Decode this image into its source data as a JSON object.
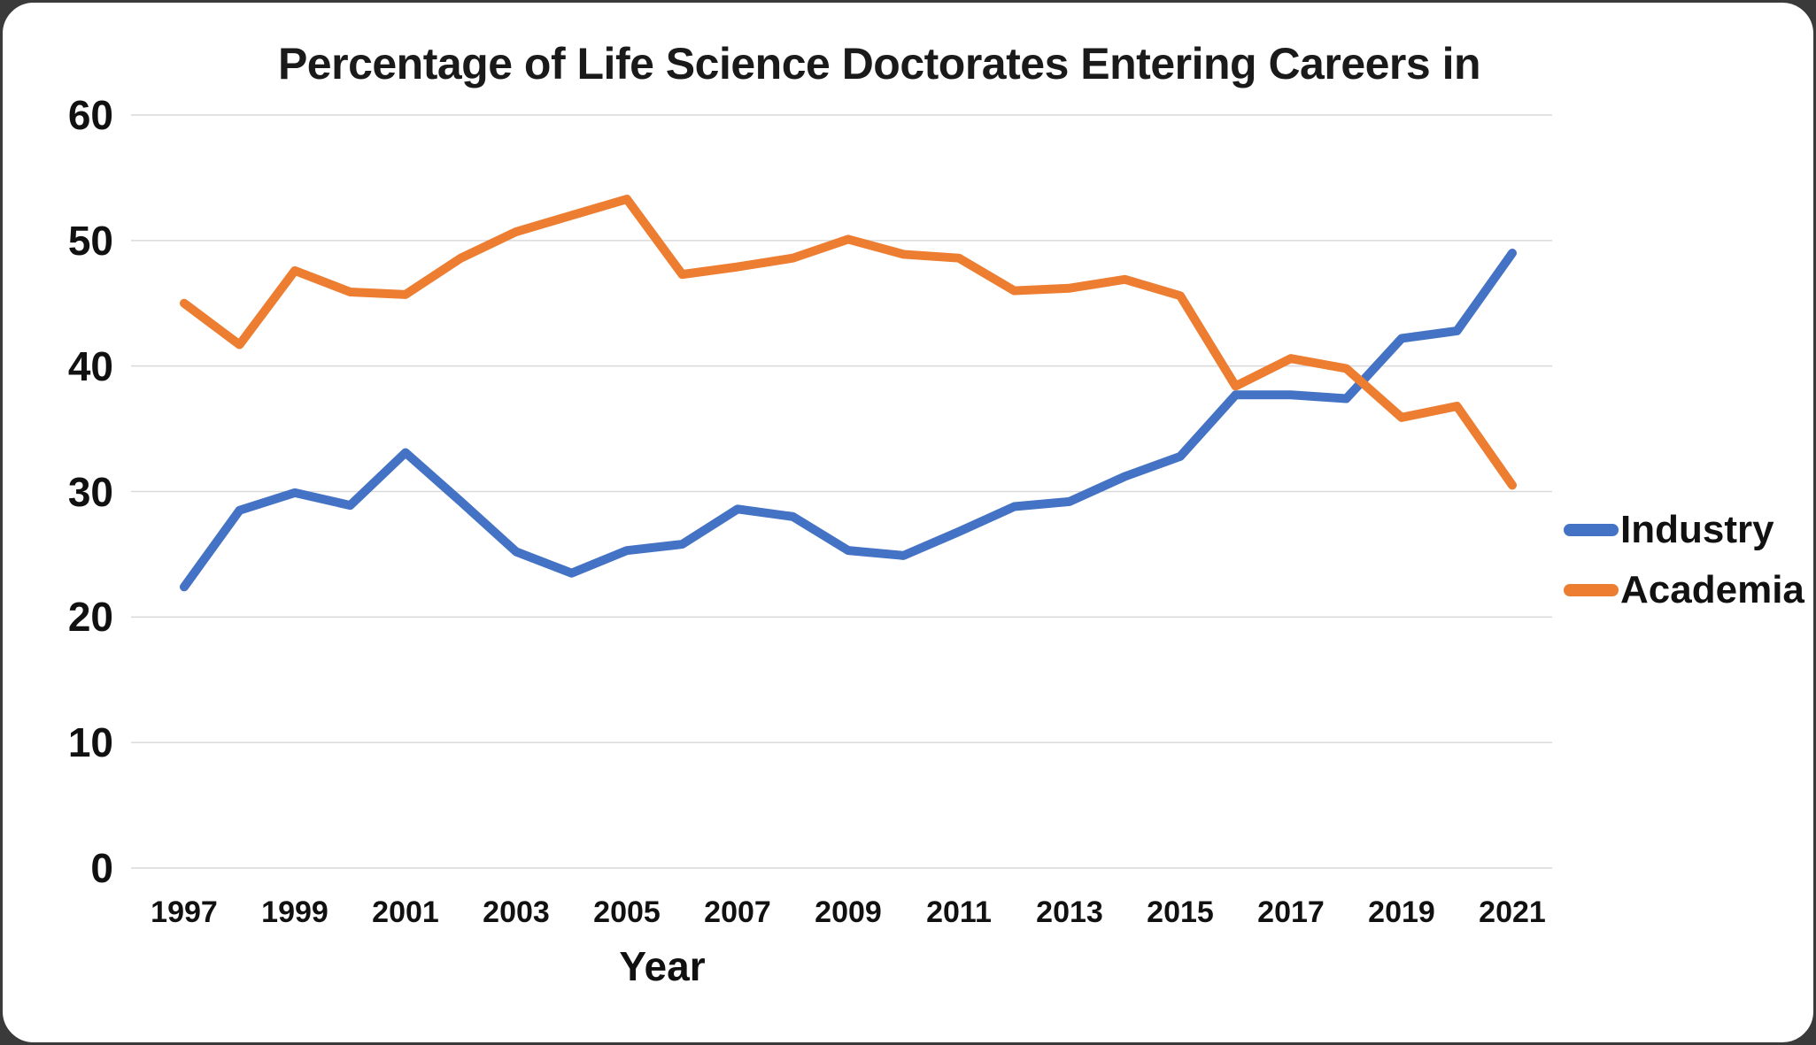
{
  "frame": {
    "outer_background": "#3a3a3a",
    "card_background": "#ffffff",
    "border_color": "#3a3a3a"
  },
  "chart_data": {
    "type": "line",
    "title": "Percentage of Life Science Doctorates Entering Careers in",
    "xlabel": "Year",
    "ylabel": "",
    "ylim": [
      0,
      60
    ],
    "ytick_values": [
      0,
      10,
      20,
      30,
      40,
      50,
      60
    ],
    "grid": true,
    "gridline_color": "#d9d9d9",
    "text_color": "#111111",
    "legend_position": "right",
    "x": [
      1997,
      1998,
      1999,
      2000,
      2001,
      2002,
      2003,
      2004,
      2005,
      2006,
      2007,
      2008,
      2009,
      2010,
      2011,
      2012,
      2013,
      2014,
      2015,
      2016,
      2017,
      2018,
      2019,
      2020,
      2021
    ],
    "xtick_labels": [
      "1997",
      "1999",
      "2001",
      "2003",
      "2005",
      "2007",
      "2009",
      "2011",
      "2013",
      "2015",
      "2017",
      "2019",
      "2021"
    ],
    "series": [
      {
        "name": "Industry",
        "color": "#4472c4",
        "values": [
          22.4,
          28.5,
          29.9,
          28.9,
          33.1,
          29.2,
          25.2,
          23.5,
          25.3,
          25.8,
          28.6,
          28.0,
          25.3,
          24.9,
          26.8,
          28.8,
          29.2,
          31.2,
          32.8,
          37.7,
          37.7,
          37.4,
          42.2,
          42.8,
          49.0
        ]
      },
      {
        "name": "Academia",
        "color": "#ed7d31",
        "values": [
          45.0,
          41.7,
          47.6,
          45.9,
          45.7,
          48.6,
          50.7,
          52.0,
          53.3,
          47.3,
          47.9,
          48.6,
          50.1,
          48.9,
          48.6,
          46.0,
          46.2,
          46.9,
          45.6,
          38.4,
          40.6,
          39.8,
          35.9,
          36.8,
          30.5
        ]
      }
    ]
  }
}
